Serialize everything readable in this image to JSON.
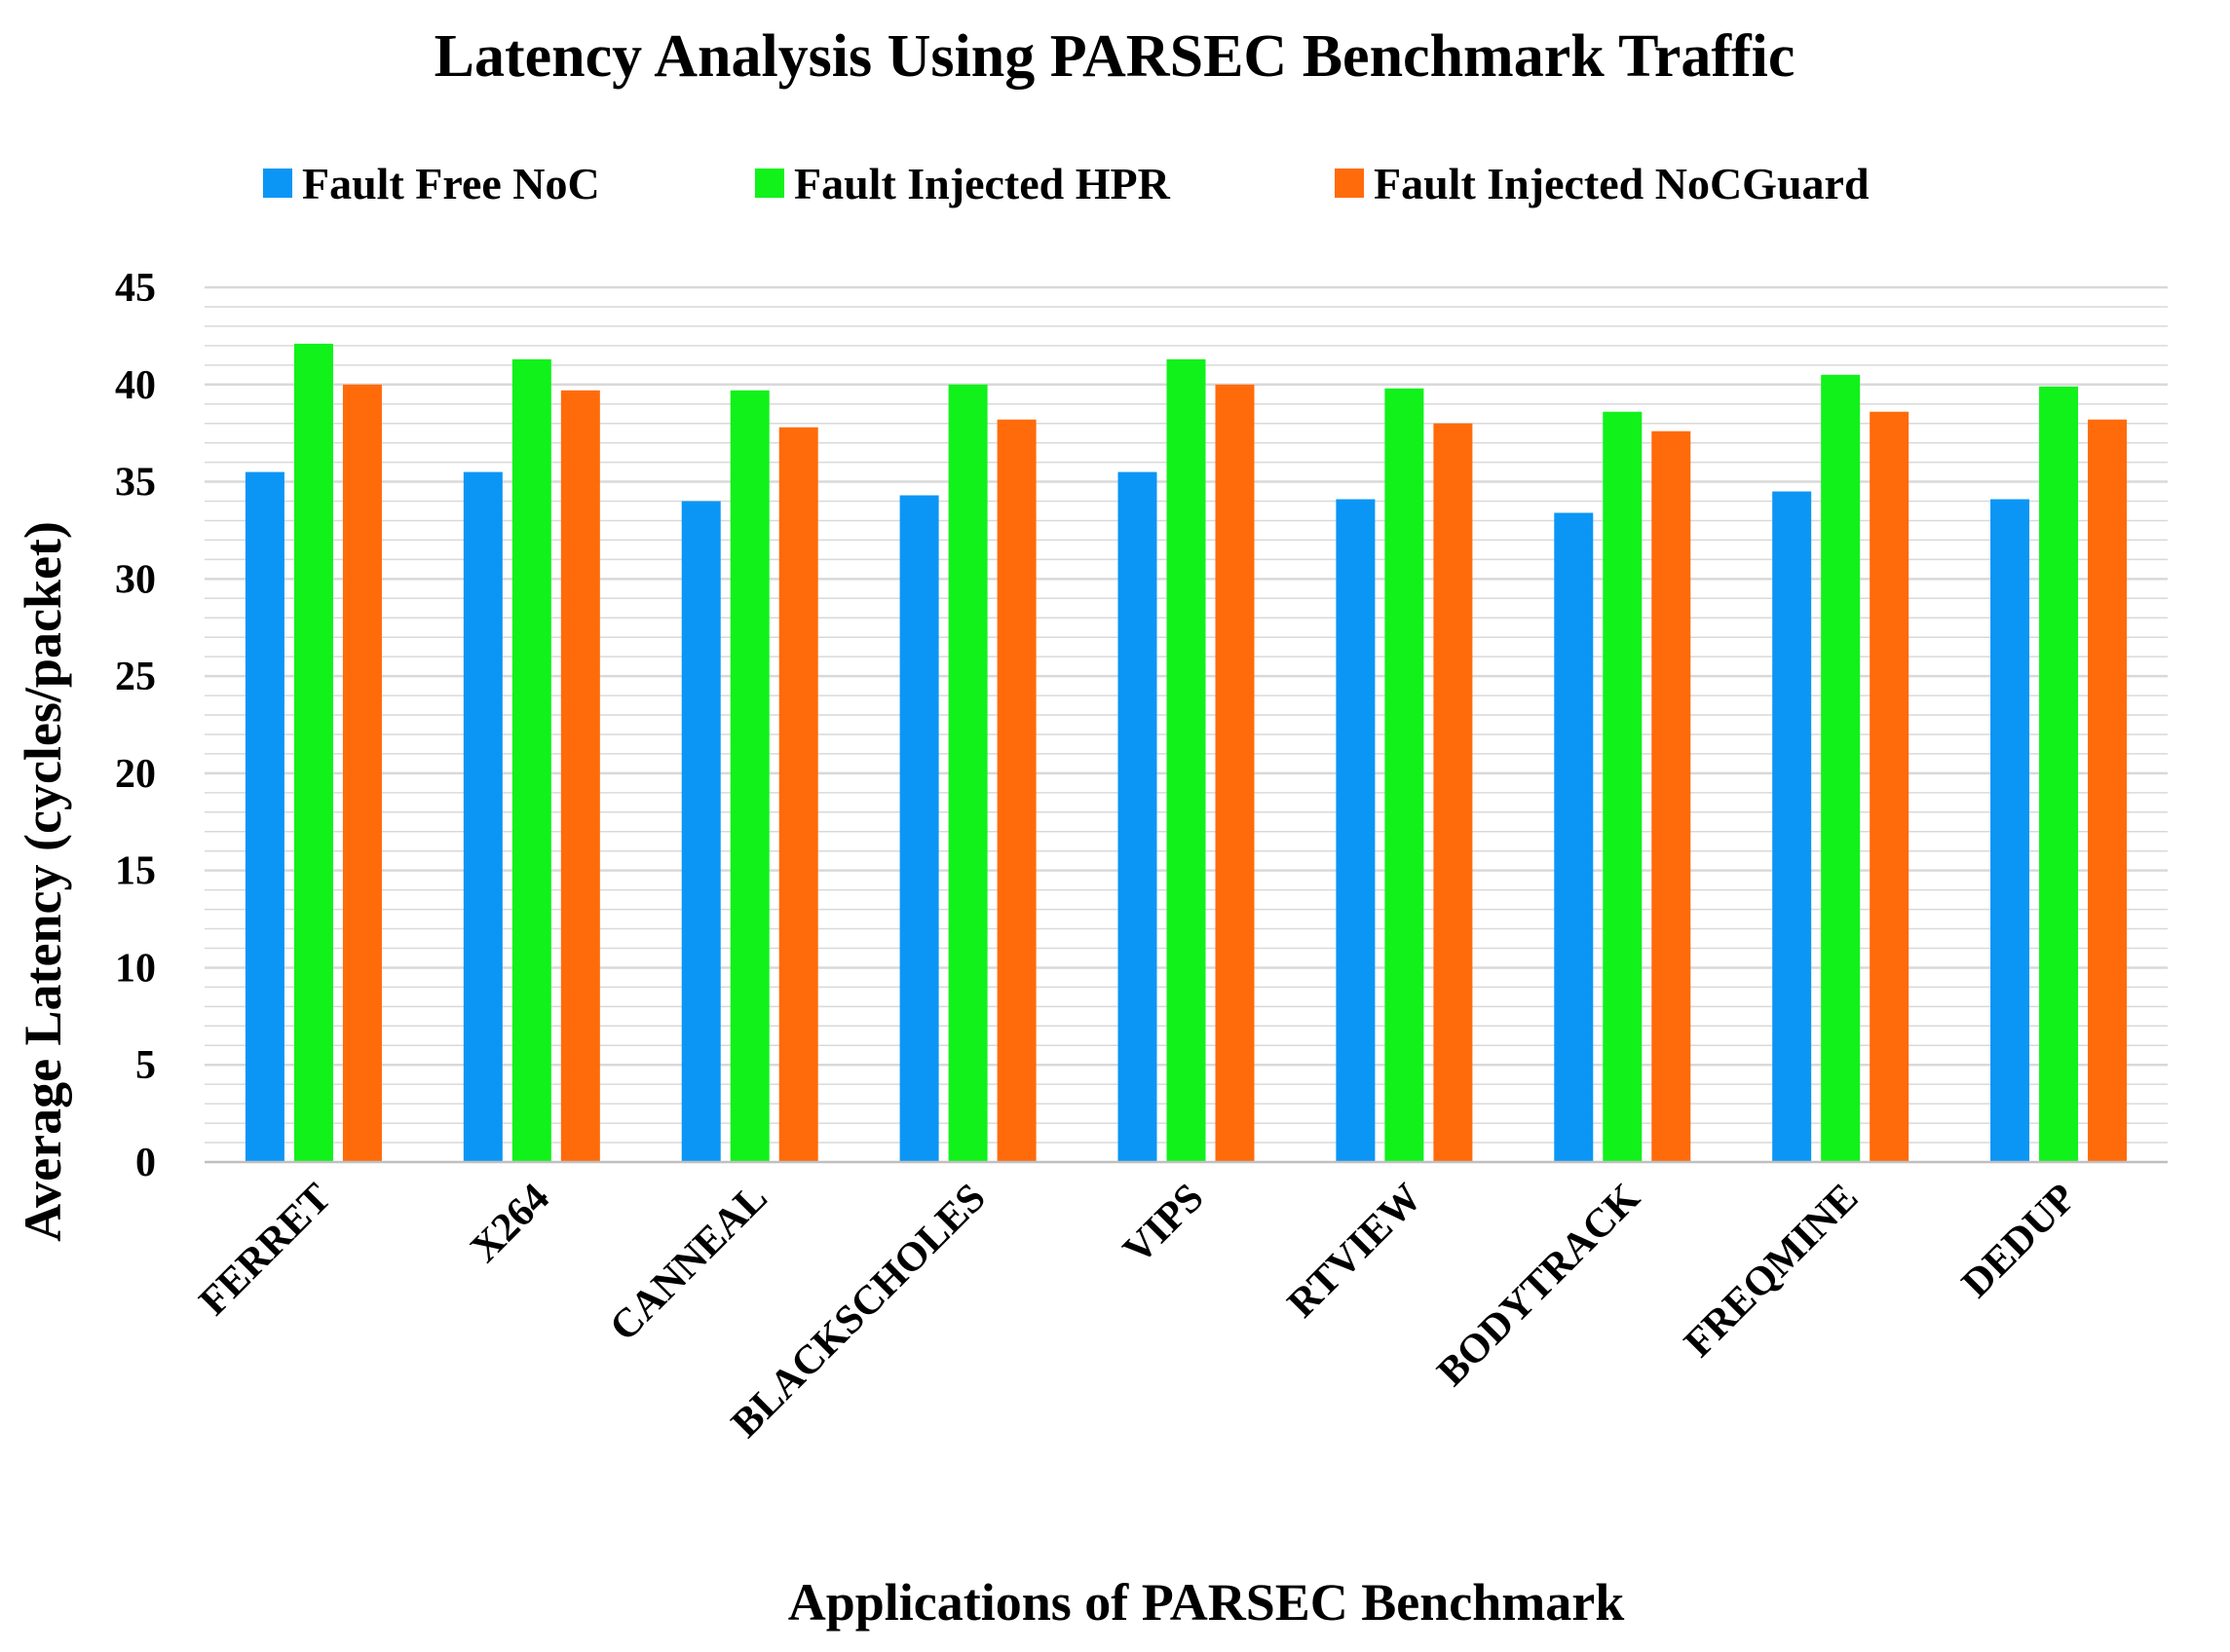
{
  "colors": {
    "series": [
      "#0b96f5",
      "#10f21a",
      "#ff6b0a"
    ],
    "grid": "#d9d9d9",
    "axis": "#bfbfbf"
  },
  "chart_data": {
    "type": "bar",
    "title": "Latency Analysis Using PARSEC Benchmark Traffic",
    "xlabel": "Applications of PARSEC Benchmark",
    "ylabel": "Average Latency (cycles/packet)",
    "ylim": [
      0,
      45
    ],
    "ytick_step": 5,
    "grid": true,
    "legend": "top",
    "categories": [
      "FERRET",
      "X264",
      "CANNEAL",
      "BLACKSCHOLES",
      "VIPS",
      "RTVIEW",
      "BODYTRACK",
      "FREQMINE",
      "DEDUP"
    ],
    "series": [
      {
        "name": "Fault Free NoC",
        "values": [
          35.5,
          35.5,
          34.0,
          34.3,
          35.5,
          34.1,
          33.4,
          34.5,
          34.1
        ]
      },
      {
        "name": "Fault Injected HPR",
        "values": [
          42.1,
          41.3,
          39.7,
          40.0,
          41.3,
          39.8,
          38.6,
          40.5,
          39.9
        ]
      },
      {
        "name": "Fault Injected NoCGuard",
        "values": [
          40.0,
          39.7,
          37.8,
          38.2,
          40.0,
          38.0,
          37.6,
          38.6,
          38.2
        ]
      }
    ]
  }
}
